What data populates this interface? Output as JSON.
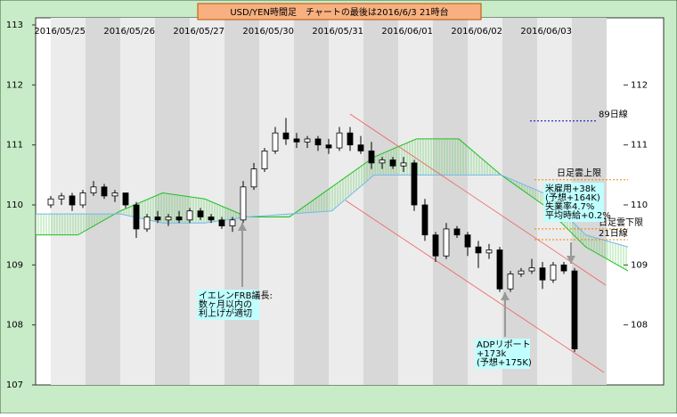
{
  "chart_data": {
    "type": "candlestick",
    "title": "USD/YEN時間足　チャートの最後は2016/6/3 21時台",
    "dates": [
      "2016/05/25",
      "2016/05/26",
      "2016/05/27",
      "2016/05/30",
      "2016/05/31",
      "2016/06/01",
      "2016/06/02",
      "2016/06/03"
    ],
    "ylim": [
      107,
      113
    ],
    "yticks": [
      107,
      108,
      109,
      110,
      111,
      112,
      113
    ],
    "y2ticks": [
      108,
      109,
      110,
      111,
      112
    ],
    "candles": [
      [
        110.0,
        110.15,
        109.95,
        110.1
      ],
      [
        110.1,
        110.2,
        110.0,
        110.15
      ],
      [
        110.15,
        110.2,
        109.9,
        110.0
      ],
      [
        110.0,
        110.25,
        109.95,
        110.2
      ],
      [
        110.2,
        110.4,
        110.15,
        110.3
      ],
      [
        110.3,
        110.35,
        110.1,
        110.15
      ],
      [
        110.15,
        110.25,
        110.05,
        110.2
      ],
      [
        110.2,
        110.2,
        109.95,
        110.0
      ],
      [
        110.0,
        110.05,
        109.45,
        109.6
      ],
      [
        109.6,
        109.85,
        109.55,
        109.8
      ],
      [
        109.8,
        109.9,
        109.7,
        109.75
      ],
      [
        109.75,
        109.85,
        109.65,
        109.8
      ],
      [
        109.8,
        109.9,
        109.7,
        109.75
      ],
      [
        109.75,
        109.95,
        109.7,
        109.9
      ],
      [
        109.9,
        109.95,
        109.75,
        109.8
      ],
      [
        109.8,
        109.85,
        109.7,
        109.75
      ],
      [
        109.75,
        109.8,
        109.6,
        109.65
      ],
      [
        109.65,
        109.8,
        109.55,
        109.75
      ],
      [
        109.75,
        110.4,
        109.7,
        110.3
      ],
      [
        110.3,
        110.7,
        110.25,
        110.6
      ],
      [
        110.6,
        110.95,
        110.55,
        110.9
      ],
      [
        110.9,
        111.3,
        110.85,
        111.2
      ],
      [
        111.2,
        111.45,
        111.0,
        111.1
      ],
      [
        111.1,
        111.2,
        110.95,
        111.05
      ],
      [
        111.05,
        111.15,
        110.95,
        111.1
      ],
      [
        111.1,
        111.15,
        110.9,
        111.0
      ],
      [
        111.0,
        111.1,
        110.85,
        110.95
      ],
      [
        110.95,
        111.3,
        110.9,
        111.2
      ],
      [
        111.2,
        111.3,
        110.9,
        111.0
      ],
      [
        111.0,
        111.15,
        110.85,
        110.9
      ],
      [
        110.9,
        111.05,
        110.6,
        110.7
      ],
      [
        110.7,
        110.8,
        110.6,
        110.75
      ],
      [
        110.75,
        110.8,
        110.6,
        110.65
      ],
      [
        110.65,
        110.8,
        110.55,
        110.7
      ],
      [
        110.7,
        110.75,
        109.9,
        110.0
      ],
      [
        110.0,
        110.1,
        109.4,
        109.5
      ],
      [
        109.5,
        109.55,
        109.05,
        109.15
      ],
      [
        109.15,
        109.7,
        109.1,
        109.6
      ],
      [
        109.6,
        109.65,
        109.45,
        109.5
      ],
      [
        109.5,
        109.55,
        109.15,
        109.3
      ],
      [
        109.3,
        109.4,
        108.95,
        109.2
      ],
      [
        109.2,
        109.35,
        109.1,
        109.25
      ],
      [
        109.25,
        109.3,
        108.55,
        108.6
      ],
      [
        108.6,
        108.9,
        108.55,
        108.85
      ],
      [
        108.85,
        108.95,
        108.8,
        108.9
      ],
      [
        108.9,
        109.1,
        108.85,
        108.95
      ],
      [
        108.95,
        109.05,
        108.6,
        108.75
      ],
      [
        108.75,
        109.05,
        108.7,
        109.0
      ],
      [
        109.0,
        109.05,
        108.85,
        108.9
      ],
      [
        108.9,
        108.95,
        107.55,
        107.6
      ]
    ],
    "cloud_a": [
      109.5,
      109.5,
      109.9,
      110.2,
      110.1,
      109.8,
      109.8,
      110.3,
      110.8,
      111.1,
      111.1,
      110.5,
      110.0,
      109.3,
      108.9
    ],
    "cloud_b": [
      109.85,
      109.85,
      109.85,
      109.7,
      109.7,
      109.8,
      109.85,
      109.9,
      110.5,
      110.5,
      110.5,
      110.5,
      110.2,
      109.5,
      109.3
    ],
    "levels": [
      {
        "label": "89日線",
        "value": 111.4,
        "color": "#0000c0"
      },
      {
        "label": "日足雲上限",
        "value": 110.42,
        "color": "#f08000"
      },
      {
        "label": "日足雲下限",
        "value": 109.6,
        "color": "#f08000"
      },
      {
        "label": "21日線",
        "value": 109.42,
        "color": "#f08000"
      }
    ],
    "annotations": [
      {
        "lines": [
          "イエレンFRB議長:",
          "数ヶ月以内の",
          "利上げが適切"
        ]
      },
      {
        "lines": [
          "米雇用+38k",
          "(予想+164K)",
          "失業率4.7%",
          "平均時給+0.2%"
        ]
      },
      {
        "lines": [
          "ADPリポート",
          "+173k",
          "(予想+175K)"
        ]
      }
    ]
  }
}
